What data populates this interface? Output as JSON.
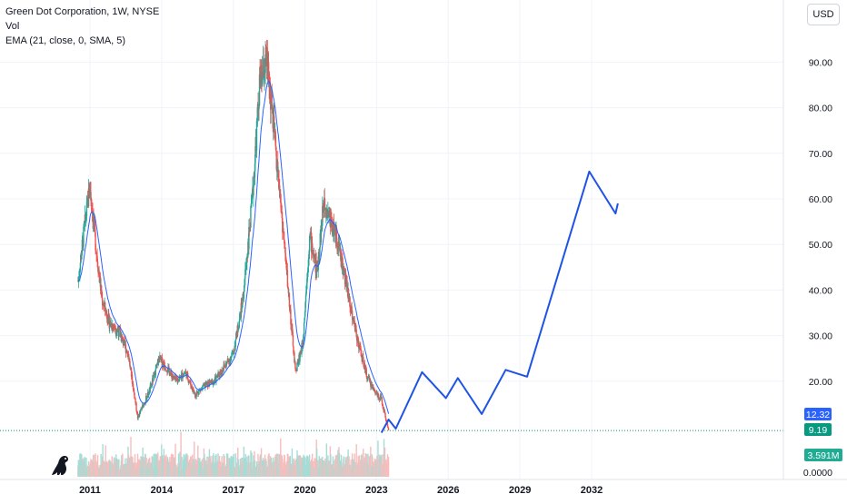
{
  "legend": {
    "title": "Green Dot Corporation, 1W, NYSE",
    "vol": "Vol",
    "ema": "EMA (21, close, 0, SMA, 5)"
  },
  "currency_button": "USD",
  "icons": {
    "logo": "dinosaur-logo-icon"
  },
  "colors": {
    "up": "#26a69a",
    "down": "#ef5350",
    "ema": "#2962ff",
    "projection": "#1e53e5",
    "price_badge": "#2962ff",
    "last_badge": "#089981",
    "volume_badge": "#22ab94",
    "grid": "#f0f3fa",
    "axis_text": "#131722"
  },
  "chart_data": {
    "type": "candlestick",
    "title": "Green Dot Corporation, 1W, NYSE",
    "ylim": [
      0,
      93
    ],
    "y_ticks": [
      "0.0000",
      "20.00",
      "30.00",
      "40.00",
      "50.00",
      "60.00",
      "70.00",
      "80.00",
      "90.00"
    ],
    "x_ticks": [
      "2011",
      "2014",
      "2017",
      "2020",
      "2023",
      "2026",
      "2029",
      "2032"
    ],
    "price_path": {
      "x": [
        2010.5,
        2010.8,
        2011.0,
        2011.2,
        2011.5,
        2011.8,
        2012.2,
        2012.6,
        2013.0,
        2013.5,
        2013.9,
        2014.2,
        2014.6,
        2015.0,
        2015.4,
        2015.8,
        2016.2,
        2016.6,
        2017.0,
        2017.4,
        2017.8,
        2018.1,
        2018.4,
        2018.7,
        2019.0,
        2019.3,
        2019.6,
        2019.9,
        2020.2,
        2020.5,
        2020.8,
        2021.1,
        2021.4,
        2021.7,
        2022.0,
        2022.3,
        2022.6,
        2022.9,
        2023.2,
        2023.5
      ],
      "y": [
        42,
        55,
        63,
        52,
        38,
        33,
        31,
        26,
        12,
        18,
        25,
        23,
        20,
        22,
        17,
        19,
        20,
        23,
        26,
        38,
        60,
        85,
        90,
        75,
        58,
        40,
        22,
        28,
        52,
        44,
        60,
        55,
        50,
        42,
        34,
        27,
        21,
        18,
        16,
        9.19
      ]
    },
    "projection": {
      "x": [
        2023.2,
        2023.5,
        2023.8,
        2024.9,
        2025.9,
        2026.4,
        2027.4,
        2028.4,
        2029.3,
        2031.9,
        2033.0,
        2033.1
      ],
      "y": [
        8.7,
        11.6,
        9.6,
        22.0,
        16.3,
        20.7,
        12.8,
        22.5,
        21.0,
        66.0,
        56.8,
        59.0
      ]
    },
    "volume_axis_label": "0.0000",
    "current_price_label": "12.32",
    "last_close_label": "9.19",
    "volume_label": "3.591M"
  }
}
